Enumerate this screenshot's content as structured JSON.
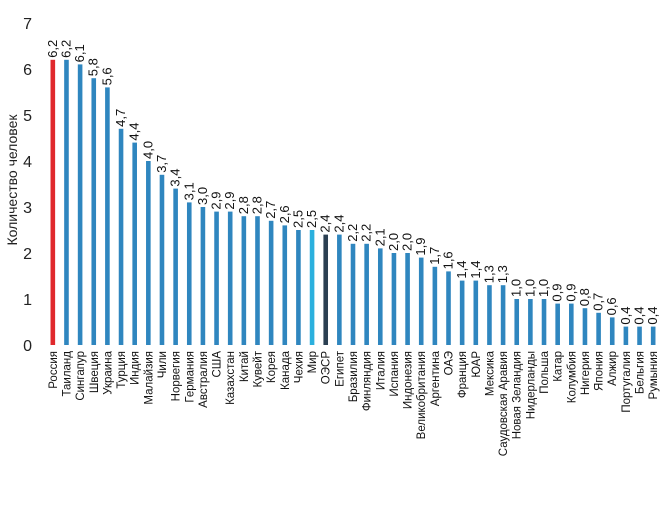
{
  "chart_data": {
    "type": "bar",
    "title": "",
    "xlabel": "",
    "ylabel": "Количество человек",
    "ylim": [
      0,
      7
    ],
    "yticks": [
      0,
      1,
      2,
      3,
      4,
      5,
      6,
      7
    ],
    "grid": false,
    "categories": [
      "Россия",
      "Таиланд",
      "Сингапур",
      "Швеция",
      "Украина",
      "Турция",
      "Индия",
      "Малайзия",
      "Чили",
      "Норвегия",
      "Германия",
      "Австралия",
      "США",
      "Казахстан",
      "Китай",
      "Кувейт",
      "Корея",
      "Канада",
      "Чехия",
      "Мир",
      "ОЭСР",
      "Египет",
      "Бразилия",
      "Финляндия",
      "Италия",
      "Испания",
      "Индонезия",
      "Великобритания",
      "Аргентина",
      "ОАЭ",
      "Франция",
      "ЮАР",
      "Мексика",
      "Саудовская Аравия",
      "Новая Зеландия",
      "Нидерланды",
      "Польша",
      "Катар",
      "Колумбия",
      "Нигерия",
      "Япония",
      "Алжир",
      "Португалия",
      "Бельгия",
      "Румыния"
    ],
    "values": [
      6.2,
      6.2,
      6.1,
      5.8,
      5.6,
      4.7,
      4.4,
      4.0,
      3.7,
      3.4,
      3.1,
      3.0,
      2.9,
      2.9,
      2.8,
      2.8,
      2.7,
      2.6,
      2.5,
      2.5,
      2.4,
      2.4,
      2.2,
      2.2,
      2.1,
      2.0,
      2.0,
      1.9,
      1.7,
      1.6,
      1.4,
      1.4,
      1.3,
      1.3,
      1.0,
      1.0,
      1.0,
      0.9,
      0.9,
      0.8,
      0.7,
      0.6,
      0.4,
      0.4,
      0.4
    ],
    "value_labels": [
      "6,2",
      "6,2",
      "6,1",
      "5,8",
      "5,6",
      "4,7",
      "4,4",
      "4,0",
      "3,7",
      "3,4",
      "3,1",
      "3,0",
      "2,9",
      "2,9",
      "2,8",
      "2,8",
      "2,7",
      "2,6",
      "2,5",
      "2,5",
      "2,4",
      "2,4",
      "2,2",
      "2,2",
      "2,1",
      "2,0",
      "2,0",
      "1,9",
      "1,7",
      "1,6",
      "1,4",
      "1,4",
      "1,3",
      "1,3",
      "1,0",
      "1,0",
      "1,0",
      "0,9",
      "0,9",
      "0,8",
      "0,7",
      "0,6",
      "0,4",
      "0,4",
      "0,4"
    ],
    "colors": {
      "default": "#2f86bf",
      "highlight": "#e0292d",
      "world": "#2bb0de",
      "oecd": "#2b3f52",
      "label_default": "#111111"
    },
    "special": {
      "Россия": "highlight",
      "Мир": "world",
      "ОЭСР": "oecd"
    }
  }
}
